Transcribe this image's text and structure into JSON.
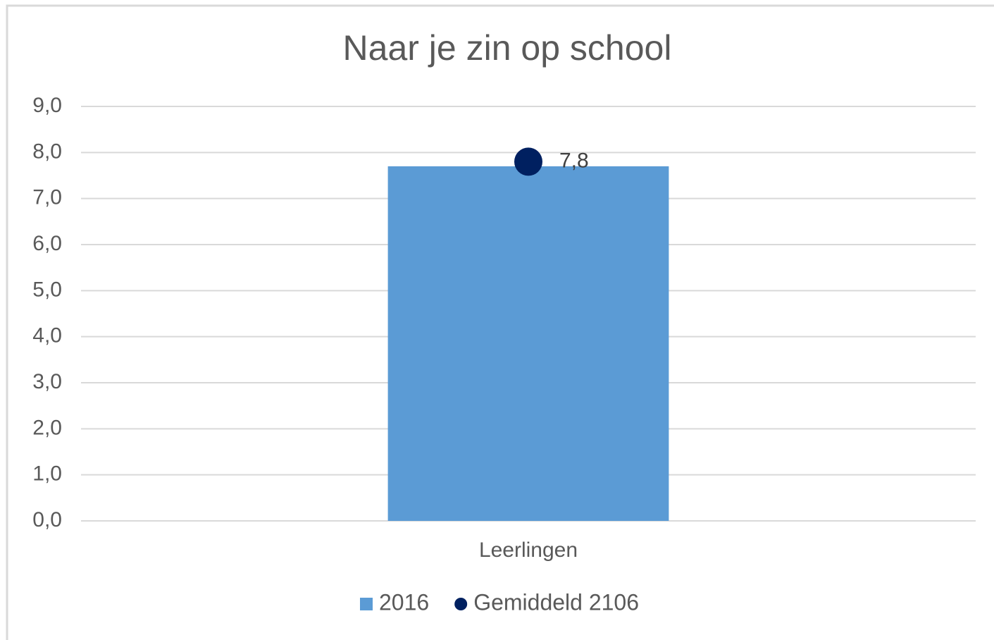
{
  "chart_data": {
    "type": "bar",
    "title": "Naar je zin op school",
    "categories": [
      "Leerlingen"
    ],
    "series": [
      {
        "name": "2016",
        "type": "bar",
        "color": "#5b9bd5",
        "values": [
          7.7
        ]
      },
      {
        "name": "Gemiddeld 2106",
        "type": "dot",
        "color": "#002060",
        "values": [
          7.8
        ],
        "value_labels": [
          "7,8"
        ]
      }
    ],
    "ylim": [
      0,
      9
    ],
    "yticks": [
      {
        "value": 0,
        "label": "0,0"
      },
      {
        "value": 1,
        "label": "1,0"
      },
      {
        "value": 2,
        "label": "2,0"
      },
      {
        "value": 3,
        "label": "3,0"
      },
      {
        "value": 4,
        "label": "4,0"
      },
      {
        "value": 5,
        "label": "5,0"
      },
      {
        "value": 6,
        "label": "6,0"
      },
      {
        "value": 7,
        "label": "7,0"
      },
      {
        "value": 8,
        "label": "8,0"
      },
      {
        "value": 9,
        "label": "9,0"
      }
    ],
    "grid": true,
    "legend": "bottom"
  }
}
